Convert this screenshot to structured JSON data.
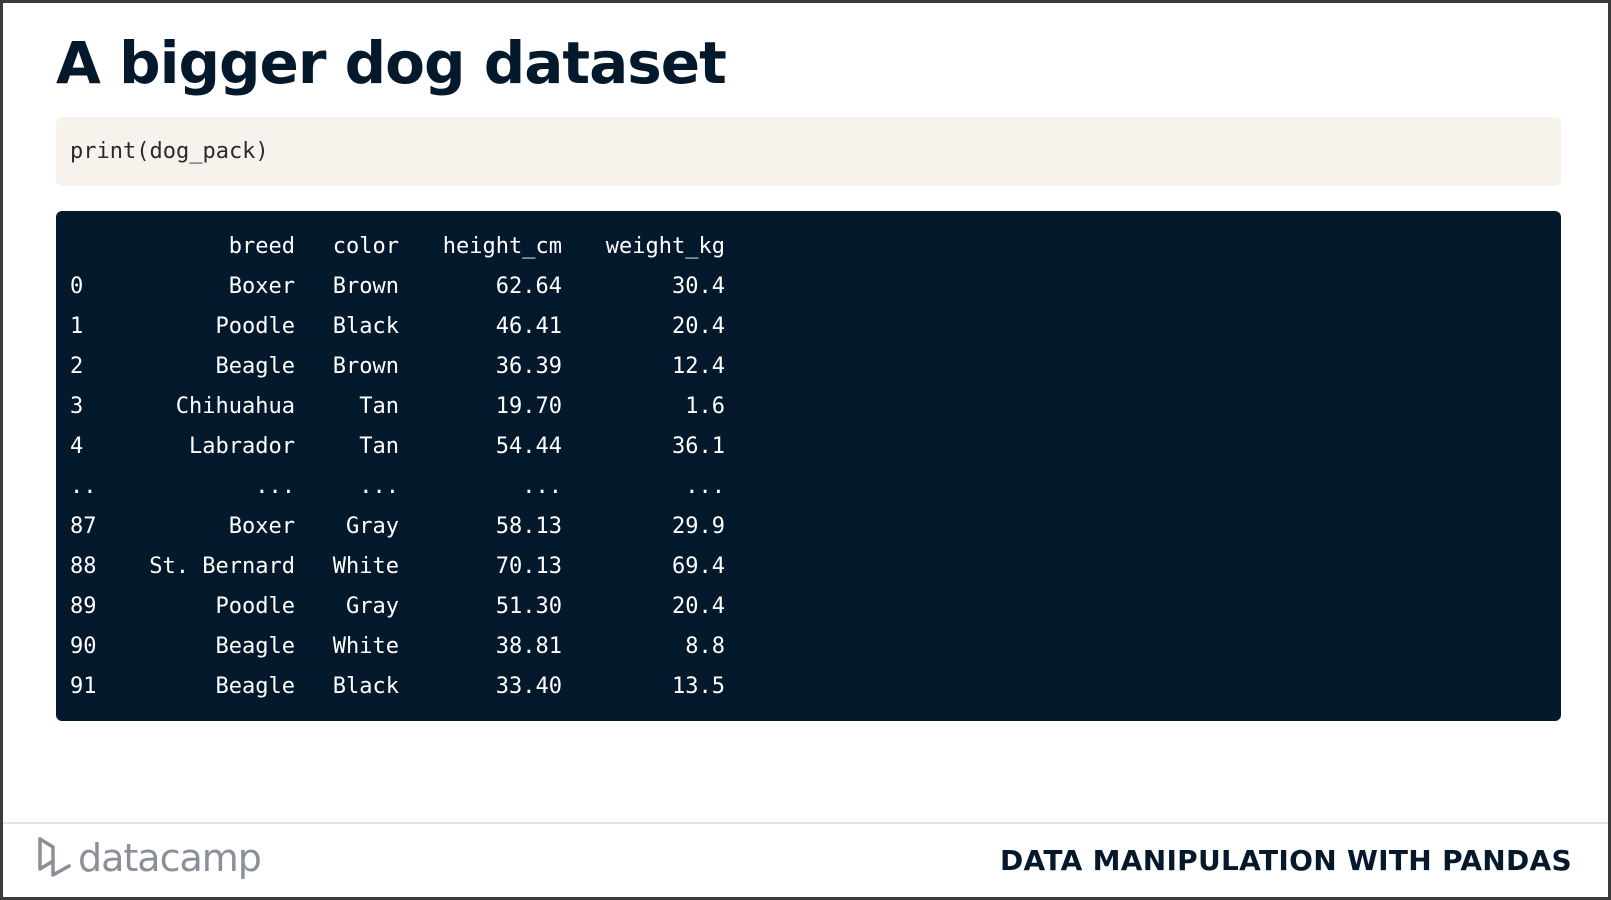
{
  "slide": {
    "title": "A bigger dog dataset",
    "code": "print(dog_pack)"
  },
  "output": {
    "columns": [
      "",
      "breed",
      "color",
      "height_cm",
      "weight_kg"
    ],
    "rows": [
      [
        "0",
        "Boxer",
        "Brown",
        "62.64",
        "30.4"
      ],
      [
        "1",
        "Poodle",
        "Black",
        "46.41",
        "20.4"
      ],
      [
        "2",
        "Beagle",
        "Brown",
        "36.39",
        "12.4"
      ],
      [
        "3",
        "Chihuahua",
        "Tan",
        "19.70",
        "1.6"
      ],
      [
        "4",
        "Labrador",
        "Tan",
        "54.44",
        "36.1"
      ],
      [
        "..",
        "...",
        "...",
        "...",
        "..."
      ],
      [
        "87",
        "Boxer",
        "Gray",
        "58.13",
        "29.9"
      ],
      [
        "88",
        "St. Bernard",
        "White",
        "70.13",
        "69.4"
      ],
      [
        "89",
        "Poodle",
        "Gray",
        "51.30",
        "20.4"
      ],
      [
        "90",
        "Beagle",
        "White",
        "38.81",
        "8.8"
      ],
      [
        "91",
        "Beagle",
        "Black",
        "33.40",
        "13.5"
      ]
    ]
  },
  "footer": {
    "logo_icon": "datacamp-logo-icon",
    "logo_text": "datacamp",
    "course": "DATA MANIPULATION WITH PANDAS"
  },
  "colors": {
    "navy": "#05192d",
    "code_bg": "#f7f3ec",
    "logo_gray": "#8a8f98"
  }
}
